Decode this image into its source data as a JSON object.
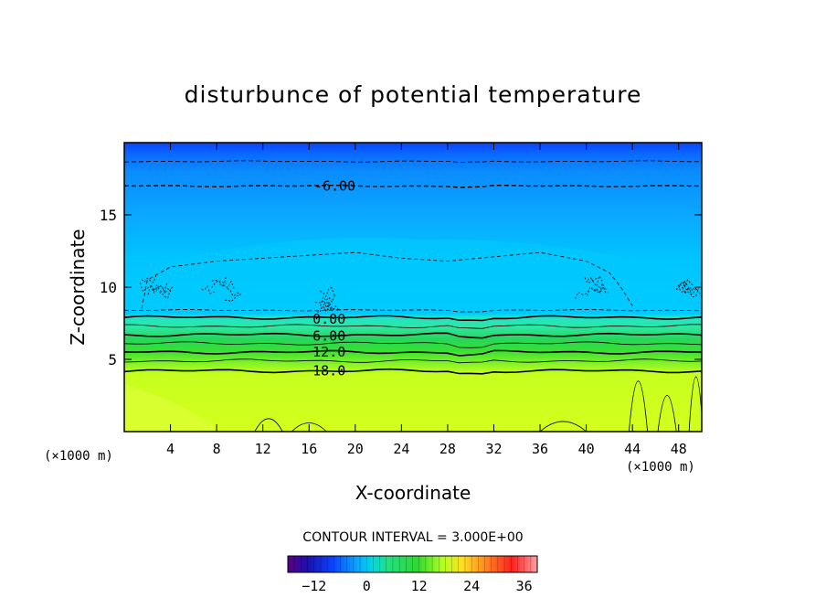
{
  "chart_data": {
    "type": "heatmap",
    "title": "disturbunce of potential temperature",
    "xlabel": "X-coordinate",
    "ylabel": "Z-coordinate",
    "x_unit_label_left": "(×1000 m)",
    "x_unit_label_right": "(×1000 m)",
    "xlim": [
      0,
      50
    ],
    "ylim": [
      0,
      20
    ],
    "x_ticks": [
      4,
      8,
      12,
      16,
      20,
      24,
      28,
      32,
      36,
      40,
      44,
      48
    ],
    "y_ticks": [
      5,
      10,
      15
    ],
    "contour_interval_label": "CONTOUR INTERVAL = 3.000E+00",
    "contour_labels": [
      {
        "text": "-6.00",
        "x": 18,
        "z": 17.0
      },
      {
        "text": "0.00",
        "x": 17.5,
        "z": 7.8
      },
      {
        "text": "6.00",
        "x": 17.5,
        "z": 6.6
      },
      {
        "text": "12.0",
        "x": 17.5,
        "z": 5.5
      },
      {
        "text": "18.0",
        "x": 17.5,
        "z": 4.2
      }
    ],
    "contour_levels_lower": [
      {
        "value": 0,
        "z": 7.9
      },
      {
        "value": 3,
        "z": 7.3
      },
      {
        "value": 6,
        "z": 6.7
      },
      {
        "value": 9,
        "z": 6.1
      },
      {
        "value": 12,
        "z": 5.5
      },
      {
        "value": 15,
        "z": 4.9
      },
      {
        "value": 18,
        "z": 4.2
      }
    ],
    "contour_levels_upper": [
      {
        "value": -3,
        "z": 8.4
      },
      {
        "value": -6,
        "z": 17.0
      },
      {
        "value": -9,
        "z": 18.7
      }
    ],
    "colorbar": {
      "min": -18,
      "max": 39,
      "ticks": [
        -12,
        0,
        12,
        24,
        36
      ]
    },
    "colors": {
      "top_blue": "#0a44ff",
      "upper_blue": "#0a8cff",
      "mid_cyan": "#00c4ff",
      "green_light": "#2fe6a0",
      "green": "#26d65a",
      "lime": "#7cf028",
      "yellow": "#d4ff1e"
    }
  }
}
